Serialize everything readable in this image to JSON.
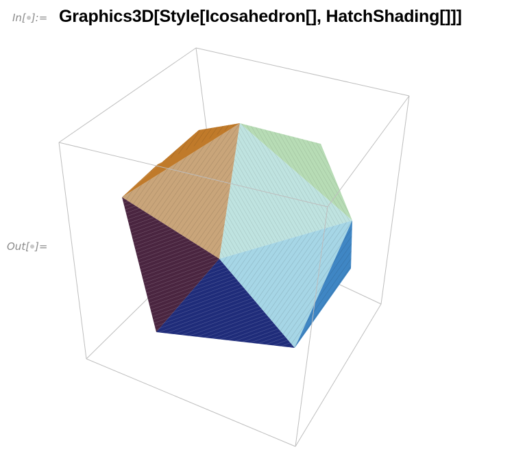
{
  "input_cell": {
    "label": "In[∙]:=",
    "label_prefix": "In[",
    "label_suffix": "]:=",
    "code": "Graphics3D[Style[Icosahedron[], HatchShading[]]]"
  },
  "output_cell": {
    "label_prefix": "Out[",
    "label_suffix": "]="
  },
  "graphic": {
    "object": "icosahedron",
    "style": "hatch-shading",
    "bounding_box": true,
    "face_colors": {
      "top_left_upper": "#c07a2a",
      "top_left_lower": "#c9a57a",
      "top_right_upper": "#b7dcb5",
      "top_right_lower": "#bfe3e0",
      "center_right": "#a6d6e6",
      "left_purple": "#4a2540",
      "bottom_navy": "#1f2c7a",
      "bottom_right": "#4a93cf",
      "right_edge": "#3f86c4"
    },
    "box_color": "#bdbdbd"
  }
}
